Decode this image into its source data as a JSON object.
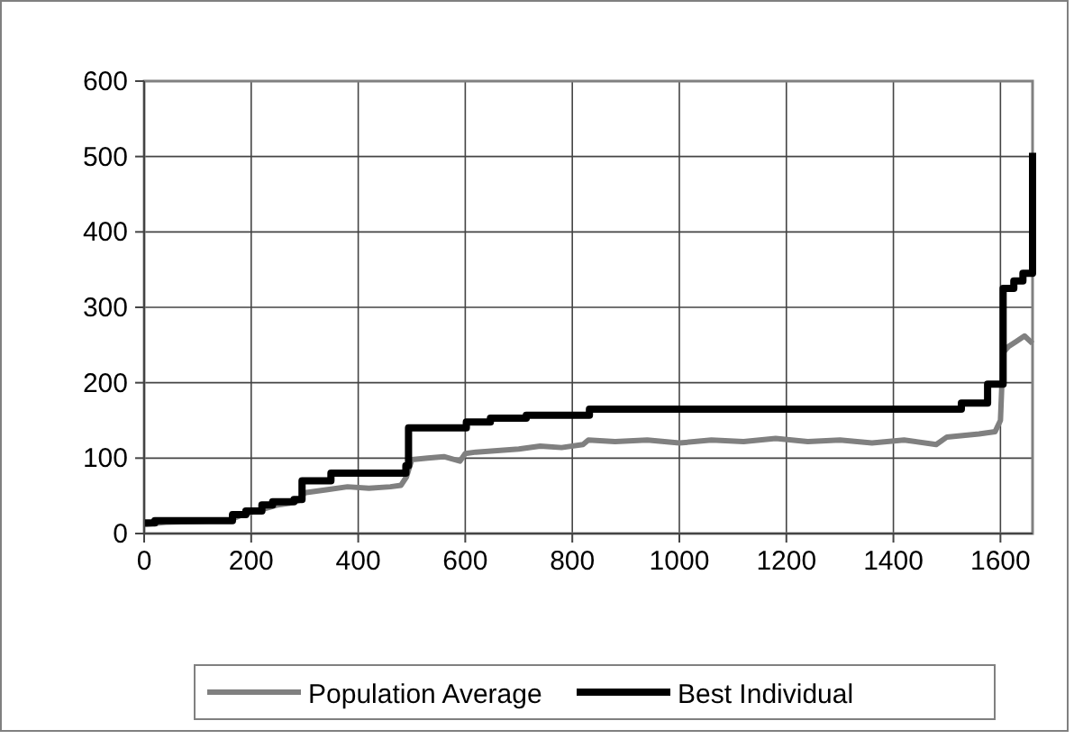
{
  "chart_data": {
    "type": "line",
    "xlim": [
      0,
      1660
    ],
    "xticks": [
      0,
      200,
      400,
      600,
      800,
      1000,
      1200,
      1400,
      1600
    ],
    "ylim": [
      0,
      600
    ],
    "yticks": [
      0,
      100,
      200,
      300,
      400,
      500,
      600
    ],
    "grid": true,
    "legend": "bottom",
    "line_style": "solid",
    "series": [
      {
        "name": "Population Average",
        "color": "#808080",
        "x": [
          0,
          40,
          100,
          160,
          180,
          200,
          230,
          250,
          270,
          290,
          300,
          340,
          380,
          420,
          460,
          480,
          490,
          500,
          530,
          560,
          590,
          600,
          620,
          660,
          700,
          740,
          780,
          820,
          830,
          880,
          940,
          1000,
          1060,
          1120,
          1180,
          1240,
          1300,
          1360,
          1420,
          1480,
          1500,
          1530,
          1560,
          1590,
          1600,
          1605,
          1615,
          1630,
          1645,
          1660
        ],
        "values": [
          12,
          15,
          16,
          18,
          24,
          28,
          34,
          38,
          40,
          44,
          54,
          58,
          62,
          60,
          62,
          64,
          75,
          98,
          100,
          102,
          96,
          106,
          108,
          110,
          112,
          116,
          114,
          118,
          124,
          122,
          124,
          120,
          124,
          122,
          126,
          122,
          124,
          120,
          124,
          118,
          128,
          130,
          132,
          135,
          150,
          240,
          248,
          255,
          262,
          252
        ]
      },
      {
        "name": "Best Individual",
        "color": "#000000",
        "type": "step",
        "x": [
          0,
          20,
          165,
          190,
          220,
          240,
          280,
          295,
          349,
          489,
          494,
          602,
          647,
          714,
          832,
          1527,
          1576,
          1605,
          1625,
          1642,
          1660
        ],
        "values": [
          14,
          17,
          25,
          30,
          38,
          42,
          45,
          70,
          80,
          90,
          140,
          148,
          153,
          157,
          165,
          173,
          198,
          325,
          335,
          345,
          505
        ]
      }
    ]
  }
}
